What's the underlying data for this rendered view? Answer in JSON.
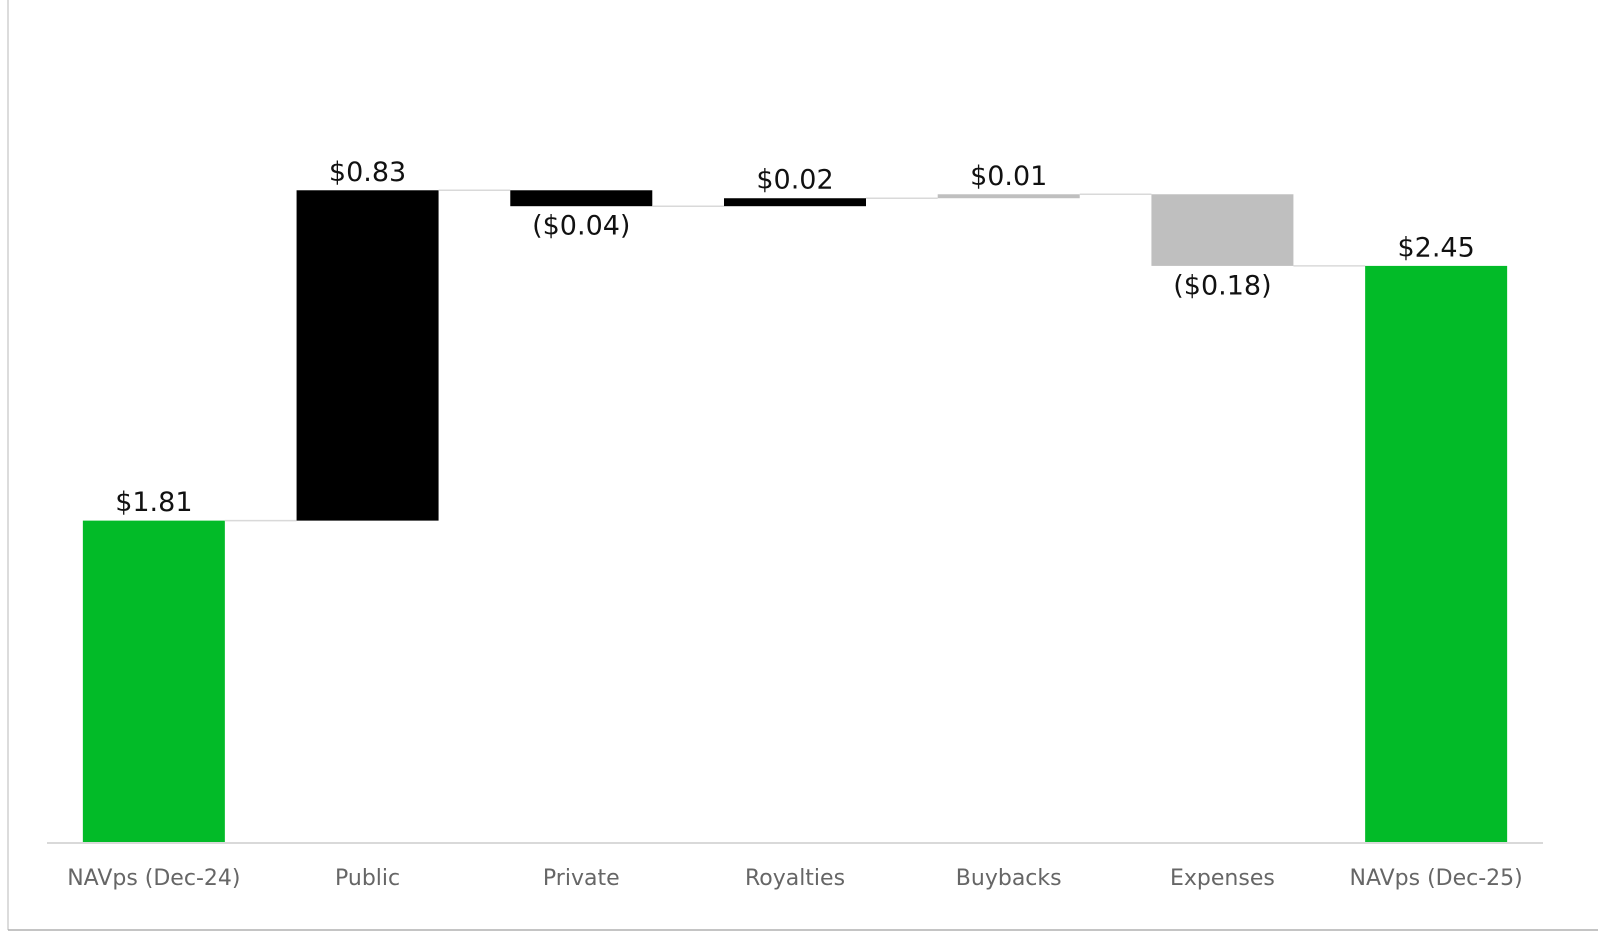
{
  "chart_data": {
    "type": "waterfall",
    "categories": [
      "NAVps (Dec-24)",
      "Public",
      "Private",
      "Royalties",
      "Buybacks",
      "Expenses",
      "NAVps (Dec-25)"
    ],
    "values": [
      1.81,
      0.83,
      -0.04,
      0.02,
      0.01,
      -0.18,
      2.45
    ],
    "value_labels": [
      "$1.81",
      "$0.83",
      "($0.04)",
      "$0.02",
      "$0.01",
      "($0.18)",
      "$2.45"
    ],
    "colors": [
      "#02bb28",
      "#000000",
      "#000000",
      "#000000",
      "#bfbfbf",
      "#bfbfbf",
      "#02bb28"
    ],
    "ylim": [
      1,
      3
    ]
  }
}
